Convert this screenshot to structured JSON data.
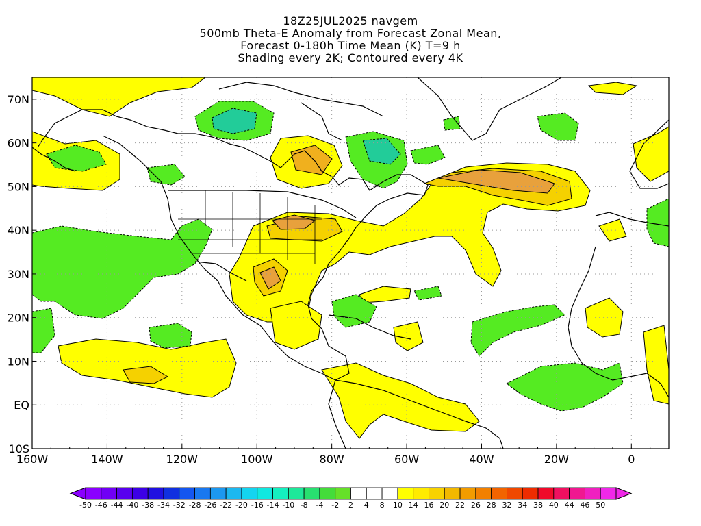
{
  "title": {
    "line1": "18Z25JUL2025 navgem",
    "line2": "500mb Theta-E Anomaly from Forecast Zonal Mean,",
    "line3": "Forecast 0-180h Time Mean (K) T=9 h",
    "line4": "Shading every 2K; Contoured every 4K"
  },
  "map": {
    "region": "North Atlantic, North America, Eastern Pacific, West Africa",
    "lon_range": [
      "160W",
      "10E"
    ],
    "lat_range": [
      "10S",
      "75N"
    ],
    "grid": "dotted",
    "x_ticks": [
      "160W",
      "140W",
      "120W",
      "100W",
      "80W",
      "60W",
      "40W",
      "20W",
      "0"
    ],
    "y_ticks": [
      "70N",
      "60N",
      "50N",
      "40N",
      "30N",
      "20N",
      "10N",
      "EQ",
      "10S"
    ],
    "colors": {
      "pos_4_8": "#FFFF00",
      "pos_8_10": "#F5D100",
      "pos_10_14": "#F0B01E",
      "pos_14_16": "#E8A13C",
      "neg_4_8": "#55EB22",
      "neg_8_10": "#33D266",
      "neg_10_14": "#22CC99",
      "land": "#000000"
    }
  },
  "colorbar": {
    "labels": [
      "-50",
      "-46",
      "-44",
      "-40",
      "-38",
      "-34",
      "-32",
      "-28",
      "-26",
      "-22",
      "-20",
      "-16",
      "-14",
      "-10",
      "-8",
      "-4",
      "-2",
      "2",
      "4",
      "8",
      "10",
      "14",
      "16",
      "20",
      "22",
      "26",
      "28",
      "32",
      "34",
      "38",
      "40",
      "44",
      "46",
      "50"
    ],
    "colors": [
      "#8A00FF",
      "#7000F5",
      "#5800EE",
      "#3C00E6",
      "#2010E0",
      "#1030E0",
      "#1456F0",
      "#1878F0",
      "#1C98F0",
      "#1CB8F0",
      "#14D4F0",
      "#10E8E0",
      "#14F0C0",
      "#1EE89A",
      "#28E070",
      "#44DC3A",
      "#66E028",
      "#FFFFFF",
      "#FFFFFF",
      "#FFFFFF",
      "#FFFF00",
      "#FFEB00",
      "#F8D200",
      "#F2B800",
      "#F29C00",
      "#F28000",
      "#F26400",
      "#F04800",
      "#EE2C00",
      "#F00A2A",
      "#F01060",
      "#F01890",
      "#F020C0",
      "#F028E8"
    ]
  }
}
